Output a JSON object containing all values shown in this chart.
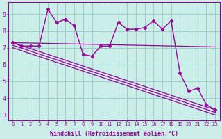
{
  "x": [
    0,
    1,
    2,
    3,
    4,
    5,
    6,
    7,
    8,
    9,
    10,
    11,
    12,
    13,
    14,
    15,
    16,
    17,
    18,
    19,
    20,
    21,
    22,
    23
  ],
  "windchill": [
    7.3,
    7.1,
    7.1,
    7.1,
    9.3,
    8.5,
    8.7,
    8.3,
    6.6,
    6.5,
    7.1,
    7.1,
    8.5,
    8.1,
    8.1,
    8.2,
    8.6,
    8.1,
    8.6,
    5.5,
    4.4,
    4.6,
    3.6,
    3.3
  ],
  "line_color": "#990099",
  "bg_color": "#cceee8",
  "grid_color": "#99cccc",
  "text_color": "#990099",
  "xlabel": "Windchill (Refroidissement éolien,°C)",
  "ylim": [
    2.7,
    9.7
  ],
  "xlim": [
    -0.5,
    23.5
  ],
  "yticks": [
    3,
    4,
    5,
    6,
    7,
    8,
    9
  ],
  "xticks": [
    0,
    1,
    2,
    3,
    4,
    5,
    6,
    7,
    8,
    9,
    10,
    11,
    12,
    13,
    14,
    15,
    16,
    17,
    18,
    19,
    20,
    21,
    22,
    23
  ],
  "flat_line": [
    [
      0,
      23
    ],
    [
      7.3,
      7.05
    ]
  ],
  "reg_line1": [
    [
      0,
      23
    ],
    [
      7.3,
      3.3
    ]
  ],
  "reg_line2": [
    [
      0,
      23
    ],
    [
      7.15,
      3.15
    ]
  ],
  "reg_line3": [
    [
      0,
      23
    ],
    [
      7.0,
      3.0
    ]
  ]
}
